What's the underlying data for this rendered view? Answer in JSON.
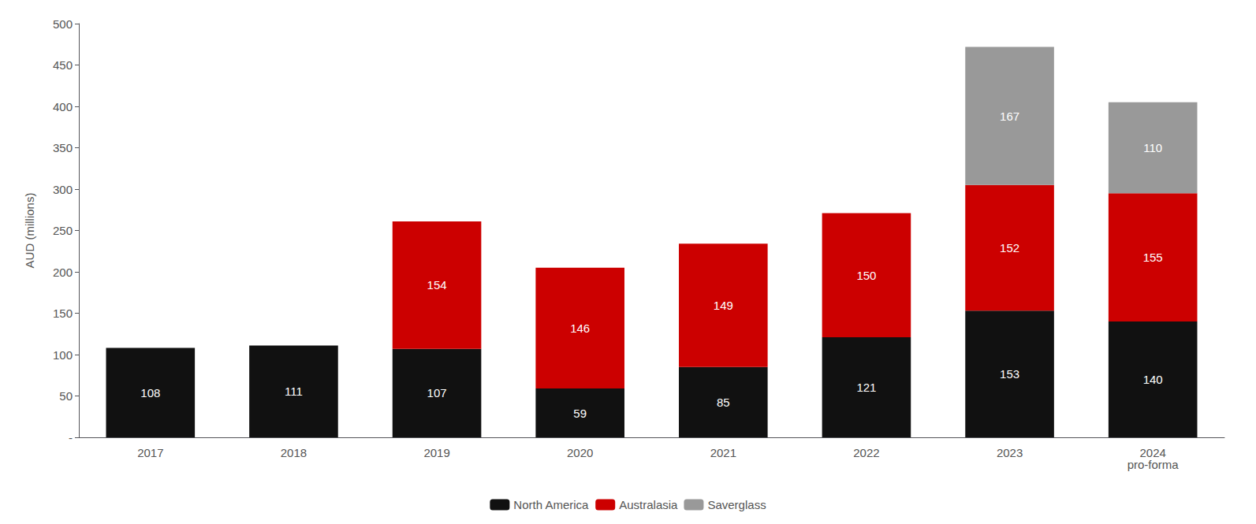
{
  "chart_data": {
    "type": "bar",
    "stacked": true,
    "categories": [
      "2017",
      "2018",
      "2019",
      "2020",
      "2021",
      "2022",
      "2023",
      "2024\npro-forma"
    ],
    "series": [
      {
        "name": "North America",
        "color": "#111111",
        "values": [
          108,
          111,
          107,
          59,
          85,
          121,
          153,
          140
        ]
      },
      {
        "name": "Australasia",
        "color": "#cc0000",
        "values": [
          0,
          0,
          154,
          146,
          149,
          150,
          152,
          155
        ]
      },
      {
        "name": "Saverglass",
        "color": "#999999",
        "values": [
          0,
          0,
          0,
          0,
          0,
          0,
          167,
          110
        ]
      }
    ],
    "ylabel": "AUD (millions)",
    "ylim": [
      0,
      500
    ],
    "yticks": [
      {
        "value": 0,
        "label": "-"
      },
      50,
      100,
      150,
      200,
      250,
      300,
      350,
      400,
      450,
      500
    ],
    "grid": false,
    "legend": "bottom",
    "data_labels": true
  }
}
